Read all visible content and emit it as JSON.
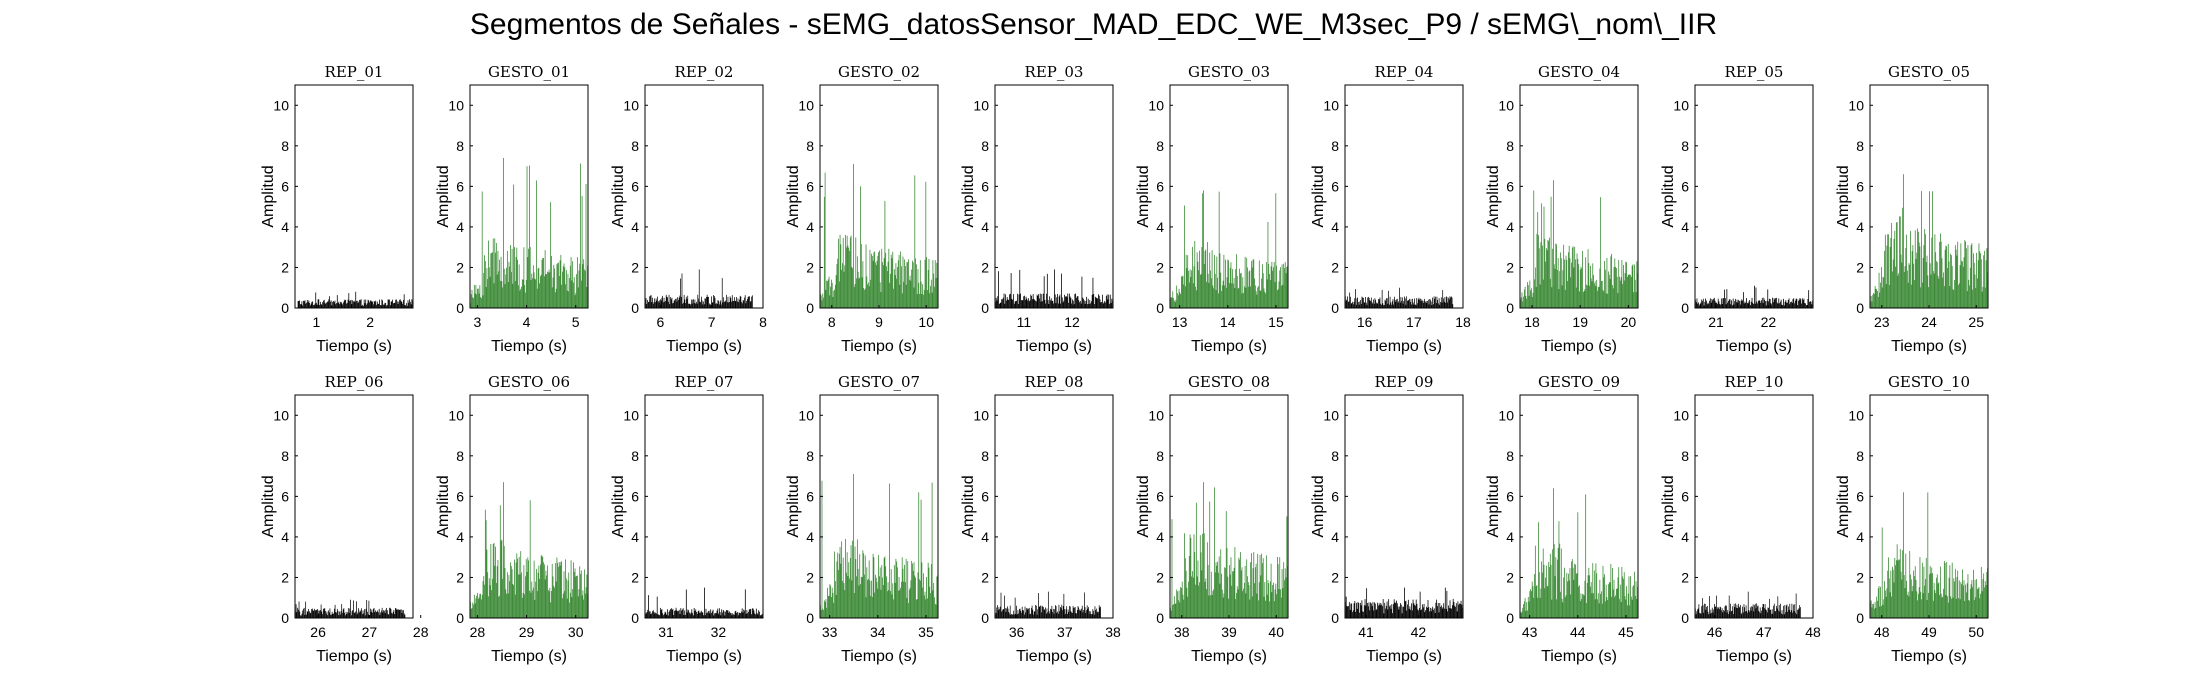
{
  "figure_title": "Segmentos de Señales - sEMG_datosSensor_MAD_EDC_WE_M3sec_P9 / sEMG\\_nom\\_IIR",
  "colors": {
    "rest": "#000000",
    "gesture": "#3b8a35",
    "axes": "#000000",
    "background": "#ffffff"
  },
  "chart_data": [
    {
      "type": "bar",
      "title": "REP_01",
      "kind": "rest",
      "xlabel": "Tiempo (s)",
      "ylabel": "Amplitud",
      "xlim": [
        0.6,
        2.8
      ],
      "ylim": [
        0,
        11
      ],
      "xticks": [
        1,
        2
      ],
      "yticks": [
        0,
        2,
        4,
        6,
        8,
        10
      ],
      "segment": [
        0.65,
        2.8
      ],
      "level": 0.3,
      "peak": 0.8
    },
    {
      "type": "bar",
      "title": "GESTO_01",
      "kind": "gesture",
      "xlabel": "Tiempo (s)",
      "ylabel": "Amplitud",
      "xlim": [
        2.85,
        5.25
      ],
      "ylim": [
        0,
        11
      ],
      "xticks": [
        3,
        4,
        5
      ],
      "yticks": [
        0,
        2,
        4,
        6,
        8,
        10
      ],
      "segment": [
        2.85,
        5.25
      ],
      "level": 2.2,
      "peak": 7.4
    },
    {
      "type": "bar",
      "title": "REP_02",
      "kind": "rest",
      "xlabel": "Tiempo (s)",
      "ylabel": "Amplitud",
      "xlim": [
        5.7,
        8.0
      ],
      "ylim": [
        0,
        11
      ],
      "xticks": [
        6,
        7,
        8
      ],
      "yticks": [
        0,
        2,
        4,
        6,
        8,
        10
      ],
      "segment": [
        5.7,
        7.8
      ],
      "level": 0.45,
      "peak": 1.9
    },
    {
      "type": "bar",
      "title": "GESTO_02",
      "kind": "gesture",
      "xlabel": "Tiempo (s)",
      "ylabel": "Amplitud",
      "xlim": [
        7.75,
        10.25
      ],
      "ylim": [
        0,
        11
      ],
      "xticks": [
        8,
        9,
        10
      ],
      "yticks": [
        0,
        2,
        4,
        6,
        8,
        10
      ],
      "segment": [
        7.75,
        10.25
      ],
      "level": 2.2,
      "peak": 7.1
    },
    {
      "type": "bar",
      "title": "REP_03",
      "kind": "rest",
      "xlabel": "Tiempo (s)",
      "ylabel": "Amplitud",
      "xlim": [
        10.4,
        12.85
      ],
      "ylim": [
        0,
        11
      ],
      "xticks": [
        11,
        12
      ],
      "yticks": [
        0,
        2,
        4,
        6,
        8,
        10
      ],
      "segment": [
        10.4,
        12.85
      ],
      "level": 0.5,
      "peak": 1.9
    },
    {
      "type": "bar",
      "title": "GESTO_03",
      "kind": "gesture",
      "xlabel": "Tiempo (s)",
      "ylabel": "Amplitud",
      "xlim": [
        12.8,
        15.25
      ],
      "ylim": [
        0,
        11
      ],
      "xticks": [
        13,
        14,
        15
      ],
      "yticks": [
        0,
        2,
        4,
        6,
        8,
        10
      ],
      "segment": [
        12.8,
        15.25
      ],
      "level": 2.0,
      "peak": 5.8
    },
    {
      "type": "bar",
      "title": "REP_04",
      "kind": "rest",
      "xlabel": "Tiempo (s)",
      "ylabel": "Amplitud",
      "xlim": [
        15.6,
        18.0
      ],
      "ylim": [
        0,
        11
      ],
      "xticks": [
        16,
        17,
        18
      ],
      "yticks": [
        0,
        2,
        4,
        6,
        8,
        10
      ],
      "segment": [
        15.6,
        17.8
      ],
      "level": 0.4,
      "peak": 1.0
    },
    {
      "type": "bar",
      "title": "GESTO_04",
      "kind": "gesture",
      "xlabel": "Tiempo (s)",
      "ylabel": "Amplitud",
      "xlim": [
        17.75,
        20.2
      ],
      "ylim": [
        0,
        11
      ],
      "xticks": [
        18,
        19,
        20
      ],
      "yticks": [
        0,
        2,
        4,
        6,
        8,
        10
      ],
      "segment": [
        17.75,
        20.2
      ],
      "level": 2.2,
      "peak": 6.3
    },
    {
      "type": "bar",
      "title": "REP_05",
      "kind": "rest",
      "xlabel": "Tiempo (s)",
      "ylabel": "Amplitud",
      "xlim": [
        20.6,
        22.85
      ],
      "ylim": [
        0,
        11
      ],
      "xticks": [
        21,
        22
      ],
      "yticks": [
        0,
        2,
        4,
        6,
        8,
        10
      ],
      "segment": [
        20.6,
        22.85
      ],
      "level": 0.35,
      "peak": 1.1
    },
    {
      "type": "bar",
      "title": "GESTO_05",
      "kind": "gesture",
      "xlabel": "Tiempo (s)",
      "ylabel": "Amplitud",
      "xlim": [
        22.75,
        25.25
      ],
      "ylim": [
        0,
        11
      ],
      "xticks": [
        23,
        24,
        25
      ],
      "yticks": [
        0,
        2,
        4,
        6,
        8,
        10
      ],
      "segment": [
        22.75,
        25.25
      ],
      "level": 2.8,
      "peak": 6.6
    },
    {
      "type": "bar",
      "title": "REP_06",
      "kind": "rest",
      "xlabel": "Tiempo (s)",
      "ylabel": "Amplitud",
      "xlim": [
        25.55,
        27.85
      ],
      "ylim": [
        0,
        11
      ],
      "xticks": [
        26,
        27,
        28
      ],
      "yticks": [
        0,
        2,
        4,
        6,
        8,
        10
      ],
      "segment": [
        25.55,
        27.7
      ],
      "level": 0.35,
      "peak": 0.9
    },
    {
      "type": "bar",
      "title": "GESTO_06",
      "kind": "gesture",
      "xlabel": "Tiempo (s)",
      "ylabel": "Amplitud",
      "xlim": [
        27.85,
        30.25
      ],
      "ylim": [
        0,
        11
      ],
      "xticks": [
        28,
        29,
        30
      ],
      "yticks": [
        0,
        2,
        4,
        6,
        8,
        10
      ],
      "segment": [
        27.85,
        30.25
      ],
      "level": 2.4,
      "peak": 6.7
    },
    {
      "type": "bar",
      "title": "REP_07",
      "kind": "rest",
      "xlabel": "Tiempo (s)",
      "ylabel": "Amplitud",
      "xlim": [
        30.6,
        32.85
      ],
      "ylim": [
        0,
        11
      ],
      "xticks": [
        31,
        32
      ],
      "yticks": [
        0,
        2,
        4,
        6,
        8,
        10
      ],
      "segment": [
        30.6,
        32.85
      ],
      "level": 0.35,
      "peak": 1.5
    },
    {
      "type": "bar",
      "title": "GESTO_07",
      "kind": "gesture",
      "xlabel": "Tiempo (s)",
      "ylabel": "Amplitud",
      "xlim": [
        32.8,
        35.25
      ],
      "ylim": [
        0,
        11
      ],
      "xticks": [
        33,
        34,
        35
      ],
      "yticks": [
        0,
        2,
        4,
        6,
        8,
        10
      ],
      "segment": [
        32.8,
        35.25
      ],
      "level": 2.4,
      "peak": 7.1
    },
    {
      "type": "bar",
      "title": "REP_08",
      "kind": "rest",
      "xlabel": "Tiempo (s)",
      "ylabel": "Amplitud",
      "xlim": [
        35.55,
        38.0
      ],
      "ylim": [
        0,
        11
      ],
      "xticks": [
        36,
        37,
        38
      ],
      "yticks": [
        0,
        2,
        4,
        6,
        8,
        10
      ],
      "segment": [
        35.55,
        37.75
      ],
      "level": 0.45,
      "peak": 1.3
    },
    {
      "type": "bar",
      "title": "GESTO_08",
      "kind": "gesture",
      "xlabel": "Tiempo (s)",
      "ylabel": "Amplitud",
      "xlim": [
        37.75,
        40.25
      ],
      "ylim": [
        0,
        11
      ],
      "xticks": [
        38,
        39,
        40
      ],
      "yticks": [
        0,
        2,
        4,
        6,
        8,
        10
      ],
      "segment": [
        37.75,
        40.25
      ],
      "level": 2.6,
      "peak": 6.7
    },
    {
      "type": "bar",
      "title": "REP_09",
      "kind": "rest",
      "xlabel": "Tiempo (s)",
      "ylabel": "Amplitud",
      "xlim": [
        40.6,
        42.85
      ],
      "ylim": [
        0,
        11
      ],
      "xticks": [
        41,
        42
      ],
      "yticks": [
        0,
        2,
        4,
        6,
        8,
        10
      ],
      "segment": [
        40.6,
        42.85
      ],
      "level": 0.65,
      "peak": 1.5
    },
    {
      "type": "bar",
      "title": "GESTO_09",
      "kind": "gesture",
      "xlabel": "Tiempo (s)",
      "ylabel": "Amplitud",
      "xlim": [
        42.8,
        45.25
      ],
      "ylim": [
        0,
        11
      ],
      "xticks": [
        43,
        44,
        45
      ],
      "yticks": [
        0,
        2,
        4,
        6,
        8,
        10
      ],
      "segment": [
        42.8,
        45.25
      ],
      "level": 2.2,
      "peak": 6.4
    },
    {
      "type": "bar",
      "title": "REP_10",
      "kind": "rest",
      "xlabel": "Tiempo (s)",
      "ylabel": "Amplitud",
      "xlim": [
        45.6,
        48.0
      ],
      "ylim": [
        0,
        11
      ],
      "xticks": [
        46,
        47,
        48
      ],
      "yticks": [
        0,
        2,
        4,
        6,
        8,
        10
      ],
      "segment": [
        45.6,
        47.75
      ],
      "level": 0.5,
      "peak": 1.3
    },
    {
      "type": "bar",
      "title": "GESTO_10",
      "kind": "gesture",
      "xlabel": "Tiempo (s)",
      "ylabel": "Amplitud",
      "xlim": [
        47.75,
        50.25
      ],
      "ylim": [
        0,
        11
      ],
      "xticks": [
        48,
        49,
        50
      ],
      "yticks": [
        0,
        2,
        4,
        6,
        8,
        10
      ],
      "segment": [
        47.75,
        50.25
      ],
      "level": 2.2,
      "peak": 6.2
    }
  ]
}
